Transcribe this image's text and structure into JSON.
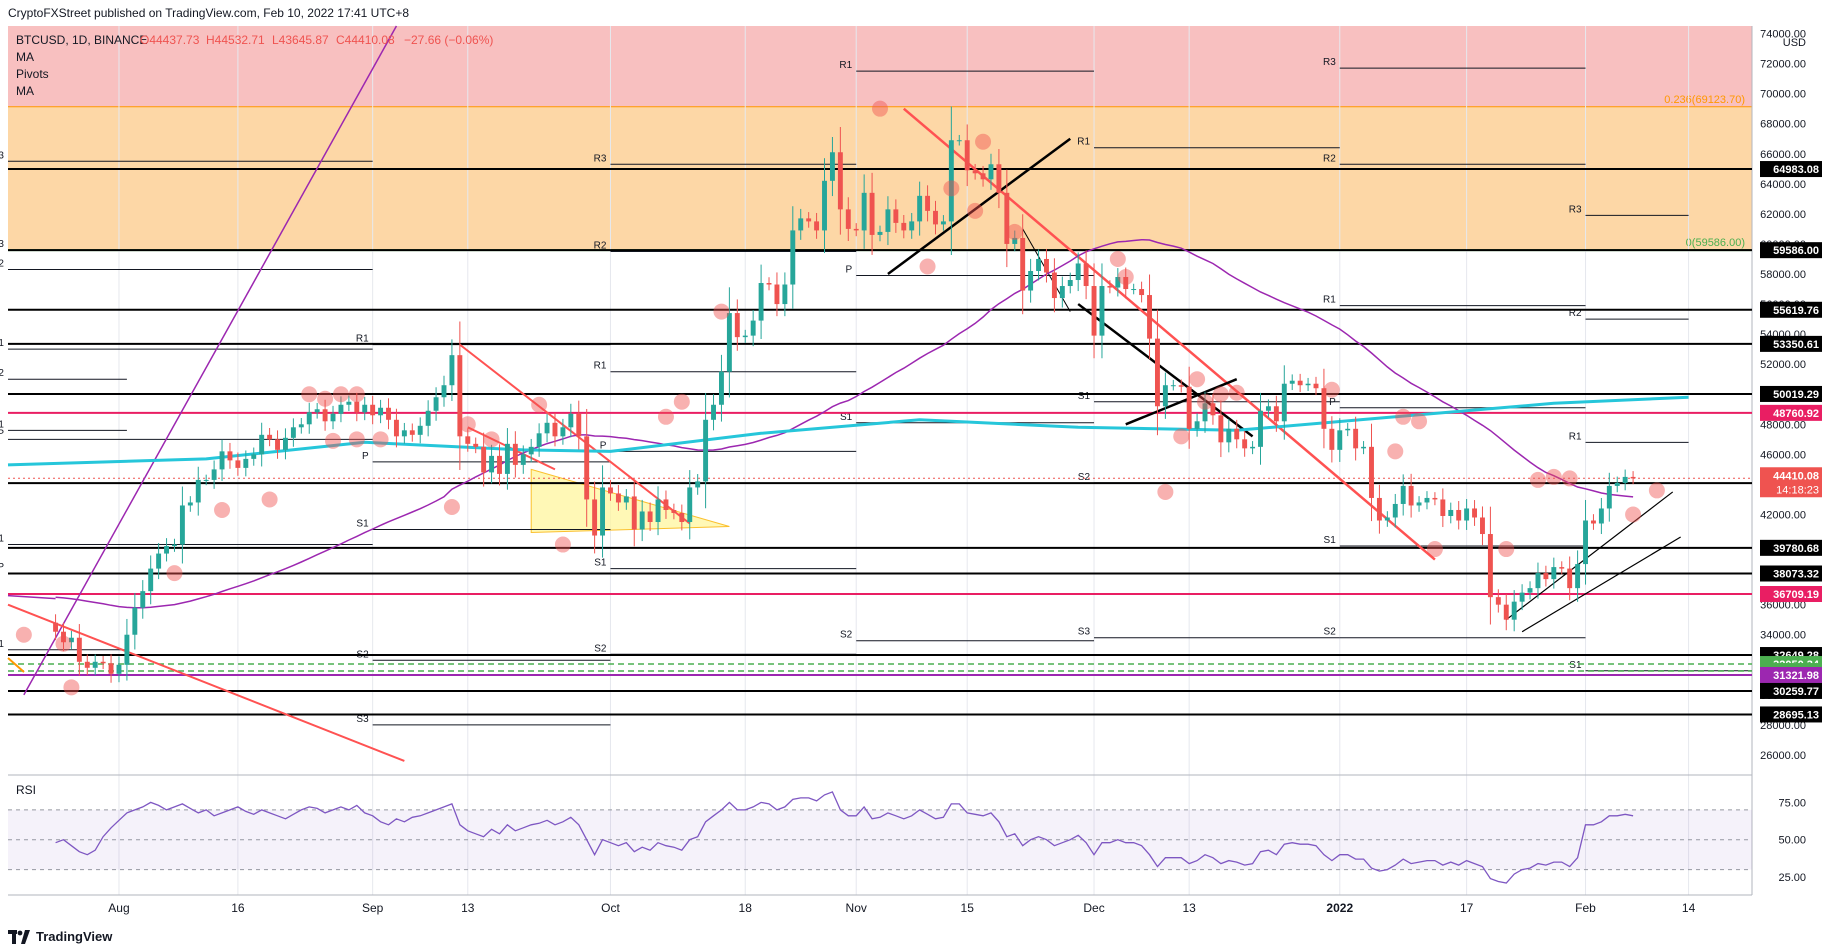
{
  "header": {
    "publisher_line": "CryptoFXStreet published on TradingView.com, Feb 10, 2022 17:41 UTC+8"
  },
  "legend": {
    "symbol": "BTCUSD, 1D, BINANCE",
    "ohlc": {
      "open": "O44437.73",
      "high": "H44532.71",
      "low": "L43645.87",
      "close": "C44410.08",
      "change": "−27.66 (−0.06%)"
    },
    "indicators": [
      "MA",
      "Pivots",
      "MA"
    ]
  },
  "footer": {
    "brand": "TradingView"
  },
  "colors": {
    "up": "#26a69a",
    "down": "#ef5350",
    "zone_red": "#f8c0c0",
    "zone_orange": "#fdd7a6",
    "ma_fast": "#9c27b0",
    "ma_slow": "#26c6da",
    "magenta_line": "#e91e63",
    "rsi_line": "#7e57c2"
  },
  "chart_data": {
    "type": "candlestick",
    "currency": "USD",
    "ylim": [
      25000,
      74500
    ],
    "y_ticks": [
      26000,
      28000,
      30000,
      32000,
      34000,
      36000,
      38000,
      40000,
      42000,
      44000,
      46000,
      48000,
      50000,
      52000,
      54000,
      56000,
      58000,
      60000,
      62000,
      64000,
      66000,
      68000,
      70000,
      72000,
      74000
    ],
    "y_tick_labels": [
      "26000.00",
      "28000.00",
      "30000.00",
      "32000.00",
      "34000.00",
      "36000.00",
      "38000.00",
      "40000.00",
      "42000.00",
      "44000.00",
      "46000.00",
      "48000.00",
      "50000.00",
      "52000.00",
      "54000.00",
      "56000.00",
      "58000.00",
      "60000.00",
      "62000.00",
      "64000.00",
      "66000.00",
      "68000.00",
      "70000.00",
      "72000.00",
      "74000.00"
    ],
    "x_ticks": [
      {
        "day": 29,
        "label": "Aug"
      },
      {
        "day": 44,
        "label": "16"
      },
      {
        "day": 61,
        "label": "Sep"
      },
      {
        "day": 73,
        "label": "13"
      },
      {
        "day": 91,
        "label": "Oct"
      },
      {
        "day": 108,
        "label": "18"
      },
      {
        "day": 122,
        "label": "Nov"
      },
      {
        "day": 136,
        "label": "15"
      },
      {
        "day": 152,
        "label": "Dec"
      },
      {
        "day": 164,
        "label": "13"
      },
      {
        "day": 183,
        "label": "2022"
      },
      {
        "day": 199,
        "label": "17"
      },
      {
        "day": 214,
        "label": "Feb"
      },
      {
        "day": 227,
        "label": "14"
      }
    ],
    "x_range_days": [
      15,
      235
    ],
    "candles_close": [
      34200,
      33500,
      33800,
      32200,
      31800,
      32200,
      32100,
      31400,
      32000,
      34000,
      35800,
      36900,
      38400,
      39400,
      39900,
      40000,
      42600,
      42800,
      44300,
      44300,
      45000,
      46200,
      45600,
      45100,
      45700,
      46000,
      47300,
      47000,
      46300,
      47100,
      47800,
      48000,
      48800,
      49000,
      48200,
      48700,
      49300,
      49500,
      48800,
      49300,
      48600,
      49100,
      48300,
      47200,
      47600,
      47300,
      47900,
      48900,
      49800,
      50600,
      52600,
      47200,
      46700,
      46500,
      44800,
      45900,
      44700,
      46700,
      45300,
      46000,
      46500,
      47400,
      48100,
      47200,
      47800,
      48700,
      47200,
      43000,
      40600,
      43800,
      43400,
      42800,
      43200,
      41000,
      42200,
      41500,
      43000,
      42300,
      42100,
      41500,
      43800,
      44200,
      48300,
      49300,
      51500,
      55400,
      53800,
      53900,
      54900,
      57400,
      57300,
      56000,
      57300,
      60900,
      61700,
      61500,
      60900,
      64200,
      66100,
      62300,
      61000,
      60900,
      63400,
      60600,
      60800,
      62300,
      61400,
      60900,
      61500,
      63200,
      62200,
      61300,
      61500,
      66900,
      66900,
      64900,
      64700,
      64300,
      65300,
      63400,
      60000,
      60400,
      56900,
      58200,
      59000,
      58100,
      56400,
      57200,
      57600,
      58700,
      57200,
      53900,
      57200,
      57100,
      57800,
      57000,
      57000,
      56600,
      53700,
      49200,
      50600,
      50600,
      50500,
      47700,
      48200,
      49400,
      48600,
      46800,
      47700,
      47000,
      46400,
      46500,
      48900,
      49200,
      48200,
      50700,
      50900,
      50600,
      50700,
      50400,
      47700,
      46300,
      47600,
      47700,
      46400,
      46500,
      43100,
      41600,
      41800,
      42700,
      43900,
      42600,
      42800,
      43100,
      43000,
      41900,
      42300,
      41600,
      42400,
      41800,
      40700,
      36500,
      36000,
      35000,
      36200,
      36800,
      37100,
      38100,
      37700,
      38500,
      38400,
      37100,
      38700,
      41600,
      41400,
      42400,
      43900,
      44100,
      44500,
      44400
    ]
  },
  "levels": [
    {
      "value": "64983.08",
      "color": "#000000"
    },
    {
      "value": "59586.00",
      "color": "#000000"
    },
    {
      "value": "55619.76",
      "color": "#000000"
    },
    {
      "value": "53350.61",
      "color": "#000000"
    },
    {
      "value": "50019.29",
      "color": "#000000"
    },
    {
      "value": "48760.92",
      "color": "#e91e63"
    },
    {
      "value": "44088.73",
      "color": "#000000"
    },
    {
      "value": "39780.68",
      "color": "#000000"
    },
    {
      "value": "38073.32",
      "color": "#000000"
    },
    {
      "value": "36709.19",
      "color": "#e91e63"
    },
    {
      "value": "32649.28",
      "color": "#000000"
    },
    {
      "value": "32050.34",
      "color": "#4caf50"
    },
    {
      "value": "31584.74",
      "color": "#4caf50"
    },
    {
      "value": "31321.98",
      "color": "#9c27b0"
    },
    {
      "value": "30259.77",
      "color": "#000000"
    },
    {
      "value": "28695.13",
      "color": "#000000"
    }
  ],
  "price_tag": {
    "value": "44410.08",
    "countdown": "14:18:23"
  },
  "fib": [
    {
      "label": "0.236(69123.70)"
    },
    {
      "label": "0(59586.00)"
    }
  ],
  "pivot_labels": [
    "R3",
    "R2",
    "R1",
    "P",
    "S1",
    "S2",
    "S3"
  ],
  "rsi": {
    "label": "RSI",
    "ticks": [
      "75.00",
      "50.00",
      "25.00"
    ],
    "values": [
      48,
      50,
      46,
      42,
      40,
      43,
      52,
      58,
      63,
      68,
      70,
      72,
      75,
      73,
      70,
      72,
      74,
      71,
      68,
      70,
      66,
      68,
      70,
      72,
      69,
      67,
      70,
      68,
      66,
      64,
      67,
      70,
      72,
      71,
      68,
      70,
      72,
      70,
      73,
      68,
      66,
      62,
      60,
      64,
      62,
      65,
      66,
      68,
      70,
      72,
      74,
      60,
      56,
      54,
      52,
      57,
      54,
      60,
      56,
      58,
      60,
      61,
      63,
      60,
      62,
      65,
      60,
      50,
      40,
      50,
      48,
      46,
      48,
      42,
      45,
      43,
      48,
      46,
      45,
      43,
      50,
      52,
      62,
      66,
      70,
      75,
      70,
      70,
      72,
      75,
      74,
      70,
      72,
      77,
      78,
      78,
      76,
      80,
      82,
      70,
      66,
      66,
      72,
      64,
      65,
      68,
      66,
      64,
      66,
      70,
      67,
      64,
      65,
      74,
      74,
      68,
      67,
      66,
      68,
      62,
      52,
      54,
      46,
      50,
      52,
      50,
      46,
      48,
      50,
      53,
      48,
      40,
      48,
      48,
      50,
      48,
      48,
      46,
      40,
      32,
      38,
      38,
      38,
      34,
      36,
      40,
      38,
      34,
      36,
      35,
      33,
      34,
      42,
      43,
      40,
      47,
      48,
      47,
      47,
      46,
      40,
      36,
      40,
      40,
      37,
      37,
      31,
      29,
      30,
      33,
      37,
      34,
      35,
      36,
      36,
      33,
      35,
      33,
      36,
      34,
      32,
      24,
      22,
      21,
      27,
      30,
      31,
      34,
      33,
      35,
      35,
      32,
      38,
      60,
      60,
      62,
      66,
      66,
      67,
      66
    ]
  }
}
